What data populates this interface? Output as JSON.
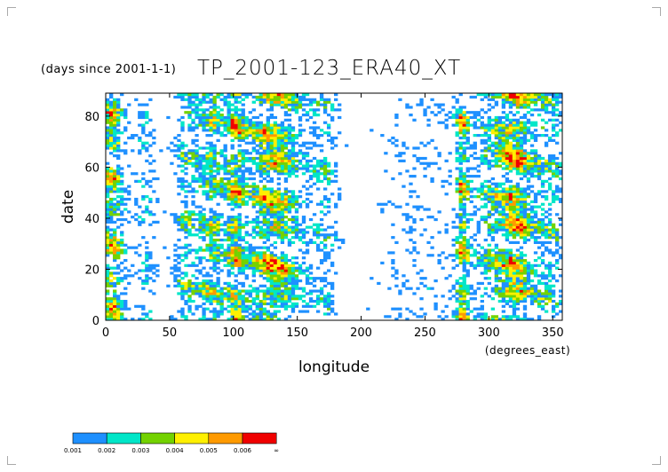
{
  "title": {
    "prefix": "(days since 2001-1-1)",
    "main": "TP_2001-123_ERA40_XT"
  },
  "chart_data": {
    "type": "heatmap",
    "title": "TP_2001-123_ERA40_XT",
    "xlabel": "longitude",
    "xunits": "(degrees_east)",
    "ylabel": "date",
    "xlim": [
      0,
      357.5
    ],
    "ylim": [
      0,
      89
    ],
    "xticks": [
      "0",
      "50",
      "100",
      "150",
      "200",
      "250",
      "300",
      "350"
    ],
    "xtick_values": [
      0,
      50,
      100,
      150,
      200,
      250,
      300,
      350
    ],
    "yticks": [
      "0",
      "20",
      "40",
      "60",
      "80"
    ],
    "ytick_values": [
      0,
      20,
      40,
      60,
      80
    ],
    "colorbar": {
      "boundaries": [
        "0.001",
        "0.002",
        "0.003",
        "0.004",
        "0.005",
        "0.006",
        "∞"
      ],
      "colors": [
        "#1e90ff",
        "#00e6c8",
        "#73d200",
        "#fff000",
        "#ff9a00",
        "#f00000"
      ]
    },
    "grid": false
  }
}
